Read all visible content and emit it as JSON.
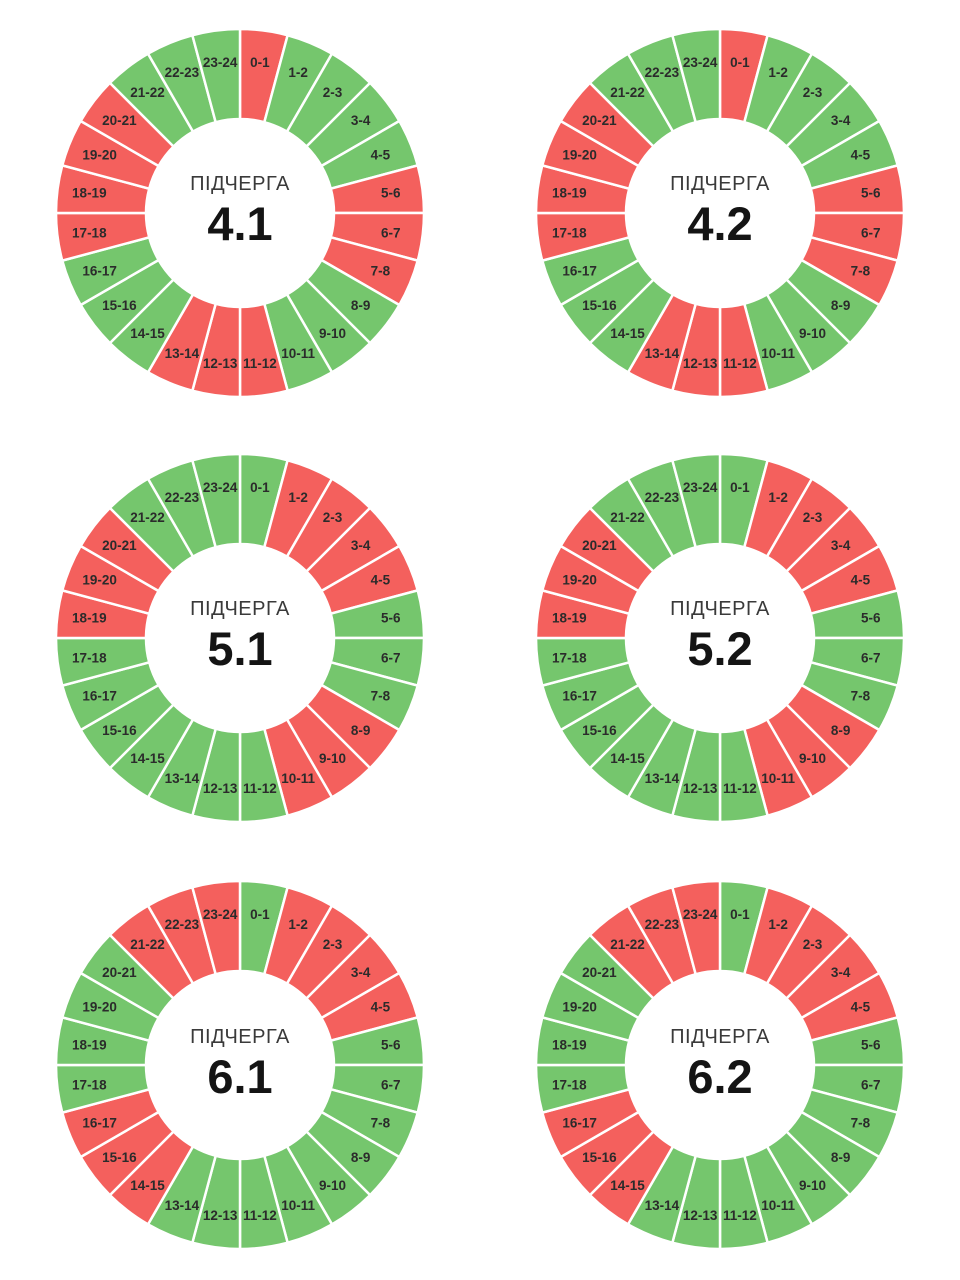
{
  "page": {
    "background_color": "#ffffff"
  },
  "chart_data": {
    "type": "pie",
    "variant": "donut",
    "layout": {
      "grid": "2x3",
      "legend": "none",
      "segments_per_chart": 24,
      "segment_angle_deg": 15,
      "start_position": "12-oclock-clockwise"
    },
    "categories": [
      "0-1",
      "1-2",
      "2-3",
      "3-4",
      "4-5",
      "5-6",
      "6-7",
      "7-8",
      "8-9",
      "9-10",
      "10-11",
      "11-12",
      "12-13",
      "13-14",
      "14-15",
      "15-16",
      "16-17",
      "17-18",
      "18-19",
      "19-20",
      "20-21",
      "21-22",
      "22-23",
      "23-24"
    ],
    "state_colors": {
      "on": "#75C66D",
      "off": "#F4605D"
    },
    "divider_color": "#ffffff",
    "label_color": "#2b2b2b",
    "charts": [
      {
        "center_label": "ПІДЧЕРГА",
        "center_value": "4.1",
        "states": [
          "off",
          "on",
          "on",
          "on",
          "on",
          "off",
          "off",
          "off",
          "on",
          "on",
          "on",
          "off",
          "off",
          "off",
          "on",
          "on",
          "on",
          "off",
          "off",
          "off",
          "off",
          "on",
          "on",
          "on"
        ]
      },
      {
        "center_label": "ПІДЧЕРГА",
        "center_value": "4.2",
        "states": [
          "off",
          "on",
          "on",
          "on",
          "on",
          "off",
          "off",
          "off",
          "on",
          "on",
          "on",
          "off",
          "off",
          "off",
          "on",
          "on",
          "on",
          "off",
          "off",
          "off",
          "off",
          "on",
          "on",
          "on"
        ]
      },
      {
        "center_label": "ПІДЧЕРГА",
        "center_value": "5.1",
        "states": [
          "on",
          "off",
          "off",
          "off",
          "off",
          "on",
          "on",
          "on",
          "off",
          "off",
          "off",
          "on",
          "on",
          "on",
          "on",
          "on",
          "on",
          "on",
          "off",
          "off",
          "off",
          "on",
          "on",
          "on"
        ]
      },
      {
        "center_label": "ПІДЧЕРГА",
        "center_value": "5.2",
        "states": [
          "on",
          "off",
          "off",
          "off",
          "off",
          "on",
          "on",
          "on",
          "off",
          "off",
          "off",
          "on",
          "on",
          "on",
          "on",
          "on",
          "on",
          "on",
          "off",
          "off",
          "off",
          "on",
          "on",
          "on"
        ]
      },
      {
        "center_label": "ПІДЧЕРГА",
        "center_value": "6.1",
        "states": [
          "on",
          "off",
          "off",
          "off",
          "off",
          "on",
          "on",
          "on",
          "on",
          "on",
          "on",
          "on",
          "on",
          "on",
          "off",
          "off",
          "off",
          "on",
          "on",
          "on",
          "on",
          "off",
          "off",
          "off"
        ]
      },
      {
        "center_label": "ПІДЧЕРГА",
        "center_value": "6.2",
        "states": [
          "on",
          "off",
          "off",
          "off",
          "off",
          "on",
          "on",
          "on",
          "on",
          "on",
          "on",
          "on",
          "on",
          "on",
          "off",
          "off",
          "off",
          "on",
          "on",
          "on",
          "on",
          "off",
          "off",
          "off"
        ]
      }
    ]
  }
}
